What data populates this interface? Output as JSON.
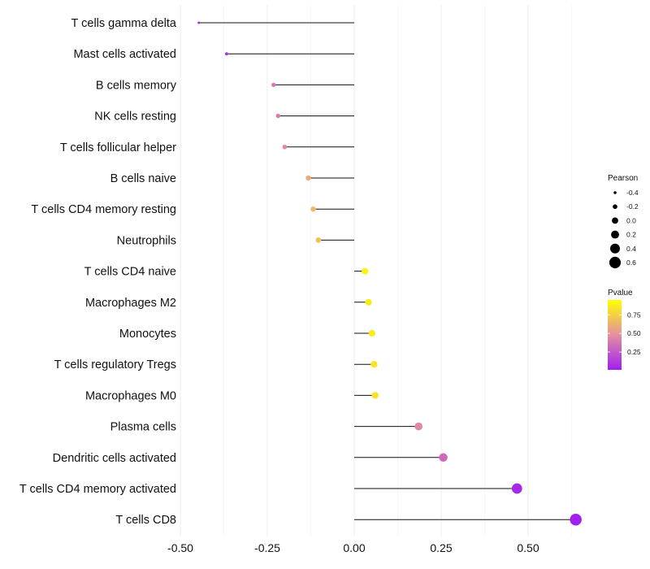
{
  "chart_data": {
    "type": "lollipop",
    "x_axis": {
      "ticks": [
        -0.5,
        -0.25,
        0.0,
        0.25,
        0.5
      ],
      "tick_labels": [
        "-0.50",
        "-0.25",
        "0.00",
        "0.25",
        "0.50"
      ],
      "range": [
        -0.5,
        0.64
      ]
    },
    "baseline": 0,
    "categories": [
      "T cells gamma delta",
      "Mast cells activated",
      "B cells memory",
      "NK cells resting",
      "T cells follicular helper",
      "B cells naive",
      "T cells CD4 memory resting",
      "Neutrophils",
      "T cells CD4 naive",
      "Macrophages M2",
      "Monocytes",
      "T cells regulatory  Tregs ",
      "Macrophages M0",
      "Plasma cells",
      "Dendritic cells activated",
      "T cells CD4 memory activated",
      "T cells CD8"
    ],
    "pearson": [
      -0.447,
      -0.367,
      -0.232,
      -0.219,
      -0.2,
      -0.132,
      -0.118,
      -0.103,
      0.031,
      0.041,
      0.051,
      0.057,
      0.06,
      0.185,
      0.256,
      0.468,
      0.637
    ],
    "pvalue": [
      0.06,
      0.1,
      0.38,
      0.4,
      0.44,
      0.6,
      0.66,
      0.7,
      0.9,
      0.88,
      0.86,
      0.84,
      0.83,
      0.45,
      0.32,
      0.05,
      0.01
    ],
    "legend_size": {
      "title": "Pearson",
      "values": [
        -0.4,
        -0.2,
        0.0,
        0.2,
        0.4,
        0.6
      ],
      "labels": [
        "-0.4",
        "-0.2",
        "0.0",
        "0.2",
        "0.4",
        "0.6"
      ]
    },
    "legend_color": {
      "title": "Pvalue",
      "range": [
        0.01,
        0.95
      ],
      "ticks": [
        0.75,
        0.5,
        0.25
      ],
      "tick_labels": [
        "0.75",
        "0.50",
        "0.25"
      ],
      "low_color": "#a020f0",
      "mid_color": "#e48fa0",
      "high_color": "#ffff00"
    }
  }
}
